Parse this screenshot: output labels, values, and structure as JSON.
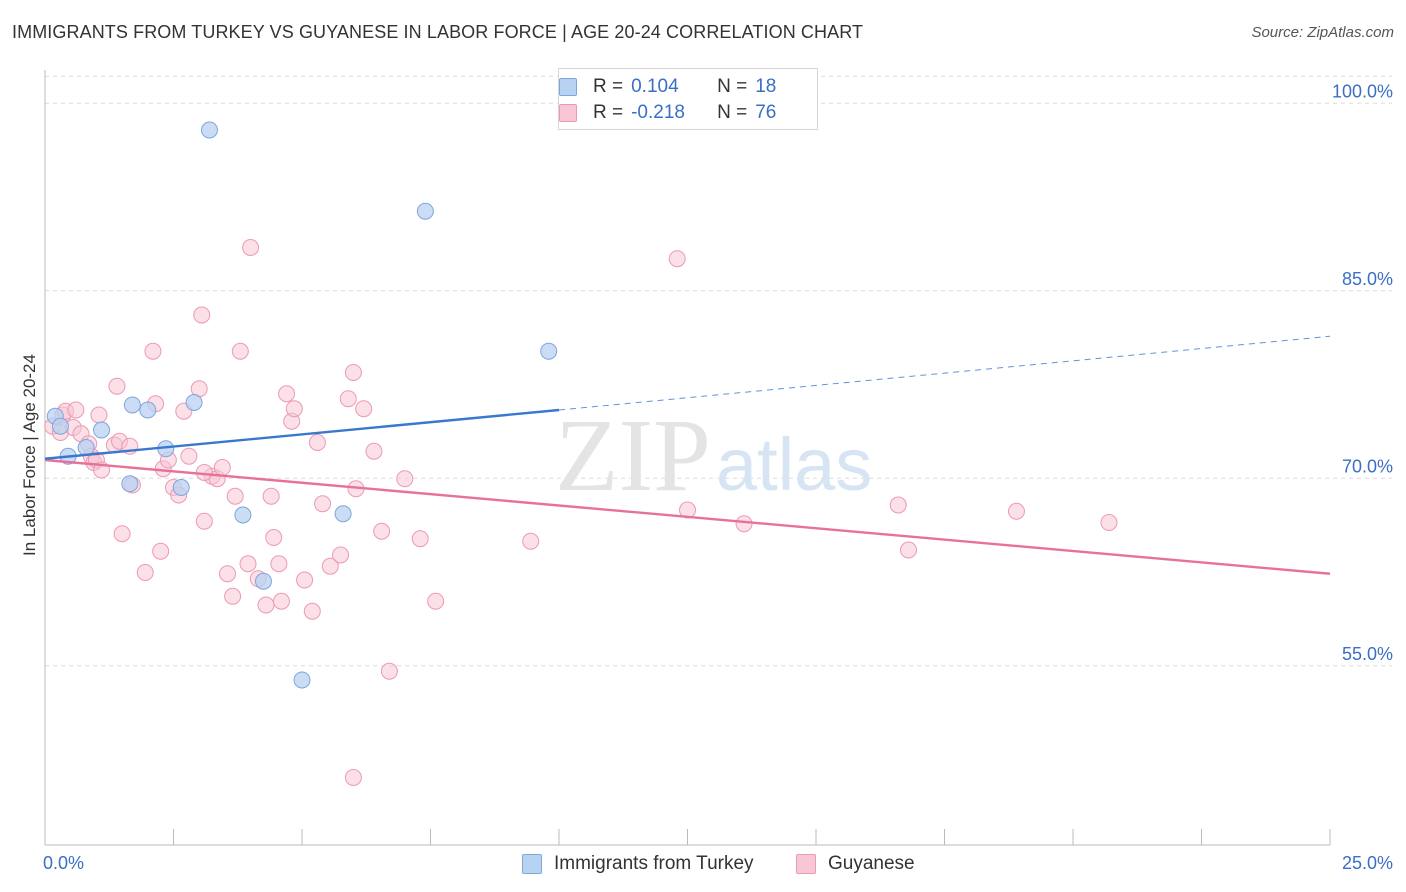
{
  "header": {
    "title": "IMMIGRANTS FROM TURKEY VS GUYANESE IN LABOR FORCE | AGE 20-24 CORRELATION CHART",
    "source": "Source: ZipAtlas.com"
  },
  "watermark": {
    "zip": "ZIP",
    "atlas": "atlas"
  },
  "legend": {
    "rows": [
      {
        "r_label": "R =",
        "r_value": "0.104",
        "n_label": "N =",
        "n_value": "18"
      },
      {
        "r_label": "R =",
        "r_value": "-0.218",
        "n_label": "N =",
        "n_value": "76"
      }
    ]
  },
  "bottom_legend": {
    "items": [
      "Immigrants from Turkey",
      "Guyanese"
    ]
  },
  "colors": {
    "turkey_fill": "#b8d2f2",
    "turkey_stroke": "#7ea6dc",
    "turkey_line": "#3a78d0",
    "guyanese_fill": "#f8c6d4",
    "guyanese_stroke": "#ec9ab4",
    "guyanese_line": "#e8719a",
    "axis_text": "#3a6fc4",
    "grid": "#dcdcdc"
  },
  "chart_data": {
    "type": "scatter",
    "title": "IMMIGRANTS FROM TURKEY VS GUYANESE IN LABOR FORCE | AGE 20-24 CORRELATION CHART",
    "xlabel": "",
    "ylabel": "In Labor Force | Age 20-24",
    "xlim": [
      0,
      25
    ],
    "ylim": [
      40.5,
      102.5
    ],
    "x_tick_labels": [
      "0.0%",
      "25.0%"
    ],
    "x_tick_values": [
      0,
      25
    ],
    "y_tick_labels": [
      "100.0%",
      "85.0%",
      "70.0%",
      "55.0%"
    ],
    "y_tick_values": [
      100,
      85,
      70,
      55
    ],
    "grid": true,
    "legend_position": "top-center",
    "series": [
      {
        "name": "Immigrants from Turkey",
        "r": 0.104,
        "n": 18,
        "points": [
          [
            0.2,
            74.8
          ],
          [
            0.45,
            71.6
          ],
          [
            0.8,
            72.3
          ],
          [
            1.1,
            73.7
          ],
          [
            1.7,
            75.7
          ],
          [
            2.0,
            75.3
          ],
          [
            1.65,
            69.4
          ],
          [
            2.35,
            72.2
          ],
          [
            2.65,
            69.1
          ],
          [
            2.9,
            75.9
          ],
          [
            3.2,
            97.7
          ],
          [
            3.85,
            66.9
          ],
          [
            4.25,
            61.6
          ],
          [
            5.0,
            53.7
          ],
          [
            5.8,
            67.0
          ],
          [
            7.4,
            91.2
          ],
          [
            9.8,
            80.0
          ],
          [
            0.3,
            74.0
          ]
        ],
        "trend": {
          "x_solid": [
            0,
            10
          ],
          "y_solid": [
            71.4,
            75.3
          ],
          "x_dashed": [
            10,
            25
          ],
          "y_dashed": [
            75.3,
            81.2
          ]
        }
      },
      {
        "name": "Guyanese",
        "r": -0.218,
        "n": 76,
        "points": [
          [
            0.15,
            74.0
          ],
          [
            0.3,
            73.5
          ],
          [
            0.35,
            74.9
          ],
          [
            0.4,
            75.2
          ],
          [
            0.55,
            73.9
          ],
          [
            0.6,
            75.3
          ],
          [
            0.7,
            73.4
          ],
          [
            0.85,
            72.6
          ],
          [
            0.9,
            71.6
          ],
          [
            0.95,
            71.1
          ],
          [
            1.0,
            71.3
          ],
          [
            1.05,
            74.9
          ],
          [
            1.1,
            70.5
          ],
          [
            1.35,
            72.5
          ],
          [
            1.4,
            77.2
          ],
          [
            1.45,
            72.8
          ],
          [
            1.5,
            65.4
          ],
          [
            1.65,
            72.4
          ],
          [
            1.7,
            69.3
          ],
          [
            1.95,
            62.3
          ],
          [
            2.1,
            80.0
          ],
          [
            2.15,
            75.8
          ],
          [
            2.25,
            64.0
          ],
          [
            2.3,
            70.6
          ],
          [
            2.4,
            71.3
          ],
          [
            2.5,
            69.1
          ],
          [
            2.6,
            68.5
          ],
          [
            2.7,
            75.2
          ],
          [
            2.8,
            71.6
          ],
          [
            3.0,
            77.0
          ],
          [
            3.05,
            82.9
          ],
          [
            3.1,
            66.4
          ],
          [
            3.25,
            70.0
          ],
          [
            3.35,
            69.8
          ],
          [
            3.45,
            70.7
          ],
          [
            3.55,
            62.2
          ],
          [
            3.65,
            60.4
          ],
          [
            3.7,
            68.4
          ],
          [
            3.8,
            80.0
          ],
          [
            3.95,
            63.0
          ],
          [
            4.0,
            88.3
          ],
          [
            4.15,
            61.8
          ],
          [
            4.3,
            59.7
          ],
          [
            4.4,
            68.4
          ],
          [
            4.55,
            63.0
          ],
          [
            4.6,
            60.0
          ],
          [
            4.7,
            76.6
          ],
          [
            4.8,
            74.4
          ],
          [
            4.85,
            75.4
          ],
          [
            5.05,
            61.7
          ],
          [
            5.2,
            59.2
          ],
          [
            5.3,
            72.7
          ],
          [
            5.4,
            67.8
          ],
          [
            5.55,
            62.8
          ],
          [
            5.75,
            63.7
          ],
          [
            5.9,
            76.2
          ],
          [
            6.0,
            78.3
          ],
          [
            6.05,
            69.0
          ],
          [
            6.2,
            75.4
          ],
          [
            6.4,
            72.0
          ],
          [
            6.55,
            65.6
          ],
          [
            6.7,
            54.4
          ],
          [
            7.0,
            69.8
          ],
          [
            7.3,
            65.0
          ],
          [
            7.6,
            60.0
          ],
          [
            9.45,
            64.8
          ],
          [
            4.45,
            65.1
          ],
          [
            6.0,
            45.9
          ],
          [
            3.1,
            70.3
          ],
          [
            12.3,
            87.4
          ],
          [
            12.5,
            67.3
          ],
          [
            13.6,
            66.2
          ],
          [
            16.6,
            67.7
          ],
          [
            16.8,
            64.1
          ],
          [
            18.9,
            67.2
          ],
          [
            20.7,
            66.3
          ]
        ],
        "trend": {
          "x": [
            0,
            25
          ],
          "y": [
            71.3,
            62.2
          ]
        }
      }
    ]
  }
}
